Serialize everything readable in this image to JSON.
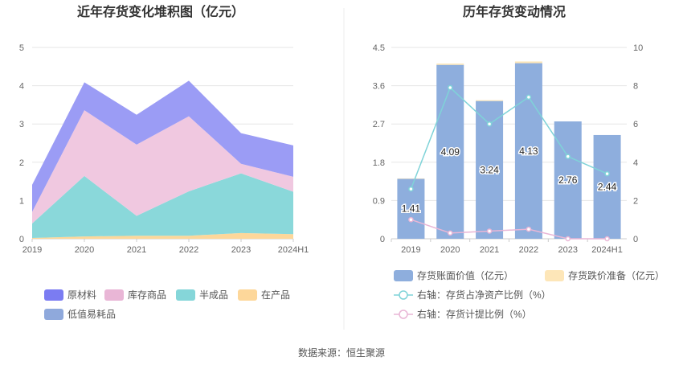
{
  "footer": {
    "source": "数据来源：恒生聚源"
  },
  "chart_data": [
    {
      "type": "area",
      "stacked": true,
      "title": "近年存货变化堆积图（亿元）",
      "categories": [
        "2019",
        "2020",
        "2021",
        "2022",
        "2023",
        "2024H1"
      ],
      "ylim": [
        0,
        5
      ],
      "yticks": [
        "0",
        "1",
        "2",
        "3",
        "4",
        "5"
      ],
      "grid": true,
      "legend_position": "bottom",
      "series": [
        {
          "name": "在产品",
          "color": "#fdd79a",
          "values": [
            0.02,
            0.06,
            0.08,
            0.08,
            0.15,
            0.12
          ]
        },
        {
          "name": "半成品",
          "color": "#8ad8da",
          "values": [
            0.38,
            1.58,
            0.52,
            1.16,
            1.56,
            1.11
          ]
        },
        {
          "name": "库存商品",
          "color": "#f0c8e0",
          "values": [
            0.3,
            1.72,
            1.86,
            1.96,
            0.25,
            0.39
          ]
        },
        {
          "name": "原材料",
          "color": "#9b9cf5",
          "values": [
            0.71,
            0.73,
            0.78,
            0.93,
            0.8,
            0.82
          ]
        },
        {
          "name": "低值易耗品",
          "color": "#8fa9dc",
          "values": [
            0,
            0,
            0,
            0,
            0,
            0
          ]
        }
      ],
      "legend": [
        {
          "name": "原材料",
          "color": "#7b7cf2"
        },
        {
          "name": "库存商品",
          "color": "#e9b6d6"
        },
        {
          "name": "半成品",
          "color": "#85d6d9"
        },
        {
          "name": "在产品",
          "color": "#fdd79a"
        },
        {
          "name": "低值易耗品",
          "color": "#8fa9dc"
        }
      ]
    },
    {
      "type": "bar",
      "title": "历年存货变动情况",
      "categories": [
        "2019",
        "2020",
        "2021",
        "2022",
        "2023",
        "2024H1"
      ],
      "ylim": [
        0,
        4.5
      ],
      "yticks": [
        "0",
        "0.9",
        "1.8",
        "2.7",
        "3.6",
        "4.5"
      ],
      "y2lim": [
        0,
        10
      ],
      "y2ticks": [
        "0",
        "2",
        "4",
        "6",
        "8",
        "10"
      ],
      "grid": true,
      "legend_position": "bottom",
      "series": [
        {
          "name": "存货账面价值（亿元）",
          "color": "#8eaedd",
          "type": "bar",
          "axis": "left",
          "values": [
            1.41,
            4.09,
            3.24,
            4.13,
            2.76,
            2.44
          ],
          "labels": [
            "1.41",
            "4.09",
            "3.24",
            "4.13",
            "2.76",
            "2.44"
          ]
        },
        {
          "name": "存货跌价准备（亿元）",
          "color": "#fde6b8",
          "type": "bar",
          "axis": "left",
          "values": [
            0.01,
            0.03,
            0.02,
            0.04,
            0.0,
            0.0
          ]
        },
        {
          "name": "右轴：存货占净资产比例（%）",
          "color": "#7fd3d8",
          "type": "line",
          "axis": "right",
          "values": [
            2.6,
            7.9,
            6.0,
            7.4,
            4.3,
            3.4
          ]
        },
        {
          "name": "右轴：存货计提比例（%）",
          "color": "#e9b6d6",
          "type": "line",
          "axis": "right",
          "values": [
            1.0,
            0.3,
            0.4,
            0.5,
            0.0,
            0.0
          ]
        }
      ]
    }
  ]
}
